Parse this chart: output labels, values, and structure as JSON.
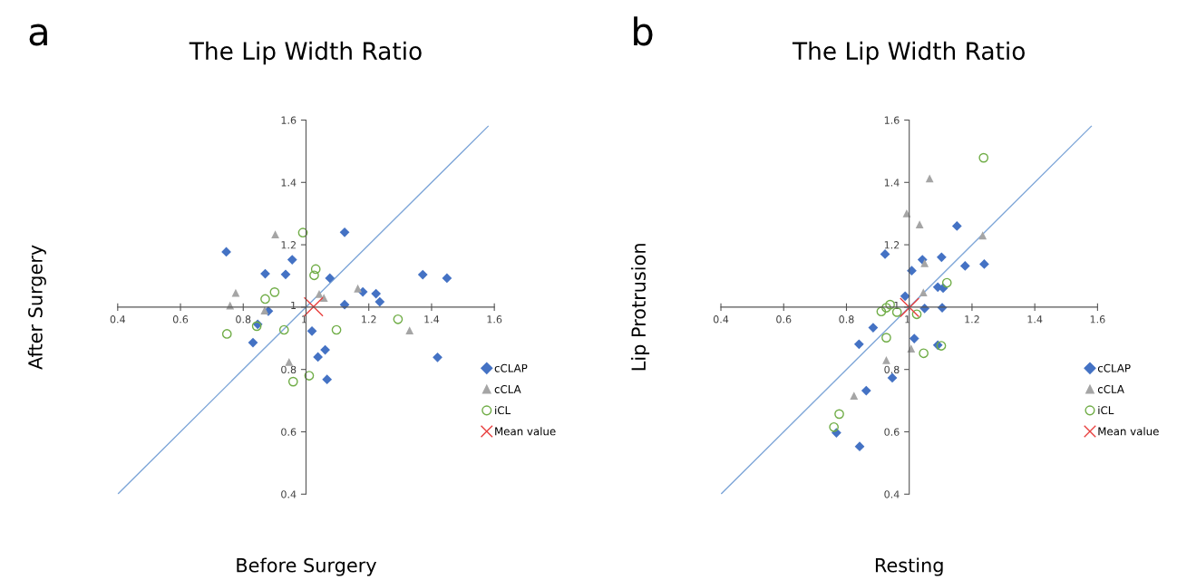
{
  "chart_data": [
    {
      "type": "scatter",
      "title": "The Lip Width Ratio",
      "xlabel": "Before Surgery",
      "ylabel": "After Surgery",
      "annotations": [
        "a"
      ],
      "xlim": [
        0.4,
        1.6
      ],
      "ylim": [
        0.4,
        1.6
      ],
      "xticks": [
        0.4,
        0.6,
        0.8,
        1,
        1.2,
        1.4,
        1.6
      ],
      "yticks": [
        0.4,
        0.6,
        0.8,
        1,
        1.2,
        1.4,
        1.6
      ],
      "grid": false,
      "legend": "right",
      "series": [
        {
          "name": "cCLAP",
          "color": "#4472c4",
          "marker": "diamond",
          "x": [
            0.746,
            0.87,
            0.935,
            0.956,
            0.88,
            0.846,
            0.831,
            1.123,
            1.076,
            1.123,
            1.019,
            1.038,
            1.061,
            1.067,
            1.181,
            1.223,
            1.235,
            1.372,
            1.449,
            1.419
          ],
          "values": [
            1.177,
            1.107,
            1.105,
            1.152,
            0.987,
            0.945,
            0.886,
            1.24,
            1.093,
            1.008,
            0.923,
            0.84,
            0.863,
            0.768,
            1.049,
            1.043,
            1.017,
            1.104,
            1.093,
            0.839
          ]
        },
        {
          "name": "cCLA",
          "color": "#a5a5a5",
          "marker": "triangle",
          "x": [
            0.902,
            0.776,
            0.758,
            0.868,
            0.946,
            1.042,
            1.057,
            1.165,
            1.33
          ],
          "values": [
            1.233,
            1.046,
            1.005,
            0.989,
            0.824,
            1.042,
            1.03,
            1.06,
            0.925
          ]
        },
        {
          "name": "iCL",
          "color": "#70ad47",
          "marker": "circle",
          "x": [
            0.99,
            1.031,
            1.026,
            0.9,
            0.87,
            0.843,
            0.748,
            0.93,
            1.097,
            1.293,
            1.01,
            0.959
          ],
          "values": [
            1.239,
            1.122,
            1.102,
            1.048,
            1.026,
            0.939,
            0.914,
            0.927,
            0.927,
            0.961,
            0.78,
            0.761
          ]
        },
        {
          "name": "Mean value",
          "color": "#e8403f",
          "marker": "cross",
          "x": [
            1.024
          ],
          "values": [
            1.001
          ]
        },
        {
          "type": "line",
          "color": "#7ea6d8",
          "marker": "none",
          "x": [
            0.4,
            1.58
          ],
          "values": [
            0.4,
            1.58
          ]
        }
      ]
    },
    {
      "type": "scatter",
      "title": "The Lip Width Ratio",
      "xlabel": "Resting",
      "ylabel": "Lip Protrusion",
      "annotations": [
        "b"
      ],
      "xlim": [
        0.4,
        1.6
      ],
      "ylim": [
        0.4,
        1.6
      ],
      "xticks": [
        0.4,
        0.6,
        0.8,
        1,
        1.2,
        1.4,
        1.6
      ],
      "yticks": [
        0.4,
        0.6,
        0.8,
        1,
        1.2,
        1.4,
        1.6
      ],
      "grid": false,
      "legend": "right",
      "series": [
        {
          "name": "cCLAP",
          "color": "#4472c4",
          "marker": "diamond",
          "x": [
            0.923,
            1.008,
            0.987,
            1.042,
            1.103,
            1.152,
            1.178,
            1.239,
            1.091,
            1.108,
            1.049,
            1.105,
            0.885,
            1.016,
            0.84,
            1.091,
            0.946,
            0.863,
            0.768,
            0.842
          ],
          "values": [
            1.17,
            1.117,
            1.035,
            1.152,
            1.16,
            1.26,
            1.132,
            1.138,
            1.064,
            1.061,
            0.996,
            0.998,
            0.934,
            0.899,
            0.881,
            0.878,
            0.773,
            0.732,
            0.597,
            0.553
          ]
        },
        {
          "name": "cCLA",
          "color": "#a5a5a5",
          "marker": "triangle",
          "x": [
            1.065,
            0.992,
            1.033,
            1.234,
            1.049,
            1.045,
            0.927,
            1.006,
            0.824
          ],
          "values": [
            1.413,
            1.301,
            1.265,
            1.23,
            1.141,
            1.047,
            0.83,
            0.867,
            0.716
          ]
        },
        {
          "name": "iCL",
          "color": "#70ad47",
          "marker": "circle",
          "x": [
            1.237,
            1.12,
            0.939,
            0.927,
            0.911,
            0.961,
            1.024,
            0.927,
            1.102,
            1.046,
            0.777,
            0.76
          ],
          "values": [
            1.479,
            1.078,
            1.008,
            0.998,
            0.986,
            0.984,
            0.977,
            0.902,
            0.876,
            0.852,
            0.657,
            0.615
          ]
        },
        {
          "name": "Mean value",
          "color": "#e8403f",
          "marker": "cross",
          "x": [
            1.001
          ],
          "values": [
            0.999
          ]
        },
        {
          "type": "line",
          "color": "#7ea6d8",
          "marker": "none",
          "x": [
            0.4,
            1.58
          ],
          "values": [
            0.4,
            1.58
          ]
        }
      ]
    }
  ]
}
